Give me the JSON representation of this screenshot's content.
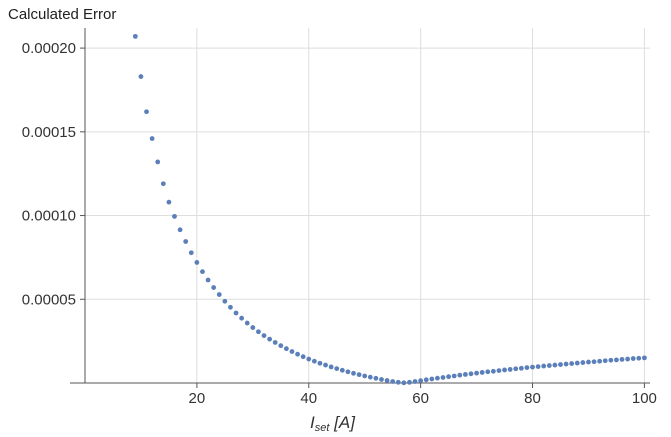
{
  "chart_data": {
    "type": "scatter",
    "title": "",
    "ylabel": "Calculated Error",
    "xlabel": {
      "symbol": "I",
      "subscript": "set",
      "unit": " [A]"
    },
    "xlim": [
      0,
      101
    ],
    "ylim": [
      0,
      0.000212
    ],
    "xticks": [
      20,
      40,
      60,
      80,
      100
    ],
    "xtick_labels": [
      "20",
      "40",
      "60",
      "80",
      "100"
    ],
    "yticks": [
      5e-05,
      0.0001,
      0.00015,
      0.0002
    ],
    "ytick_labels": [
      "0.00005",
      "0.00010",
      "0.00015",
      "0.00020"
    ],
    "grid": true,
    "marker_color": "#5b7fb9",
    "series": [
      {
        "x": [
          9,
          10,
          11,
          12,
          13,
          14,
          15,
          16,
          17,
          18,
          19,
          20,
          21,
          22,
          23,
          24,
          25,
          26,
          27,
          28,
          29,
          30,
          31,
          32,
          33,
          34,
          35,
          36,
          37,
          38,
          39,
          40,
          41,
          42,
          43,
          44,
          45,
          46,
          47,
          48,
          49,
          50,
          51,
          52,
          53,
          54,
          55,
          56,
          57,
          58,
          59,
          60,
          61,
          62,
          63,
          64,
          65,
          66,
          67,
          68,
          69,
          70,
          71,
          72,
          73,
          74,
          75,
          76,
          77,
          78,
          79,
          80,
          81,
          82,
          83,
          84,
          85,
          86,
          87,
          88,
          89,
          90,
          91,
          92,
          93,
          94,
          95,
          96,
          97,
          98,
          99,
          100
        ],
        "y": [
          0.000207,
          0.000183,
          0.000162,
          0.000146,
          0.000132,
          0.000119,
          0.000108,
          9.95e-05,
          9.15e-05,
          8.45e-05,
          7.78e-05,
          7.2e-05,
          6.65e-05,
          6.15e-05,
          5.7e-05,
          5.28e-05,
          4.88e-05,
          4.52e-05,
          4.18e-05,
          3.87e-05,
          3.58e-05,
          3.31e-05,
          3.06e-05,
          2.83e-05,
          2.62e-05,
          2.42e-05,
          2.23e-05,
          2.05e-05,
          1.88e-05,
          1.72e-05,
          1.57e-05,
          1.43e-05,
          1.3e-05,
          1.18e-05,
          1.07e-05,
          9.6e-06,
          8.6e-06,
          7.6e-06,
          6.7e-06,
          5.8e-06,
          5e-06,
          4.2e-06,
          3.5e-06,
          2.8e-06,
          2.1e-06,
          1.5e-06,
          9e-07,
          4e-07,
          1e-07,
          4e-07,
          9e-07,
          1.4e-06,
          1.9e-06,
          2.4e-06,
          2.9e-06,
          3.3e-06,
          3.8e-06,
          4.2e-06,
          4.7e-06,
          5.1e-06,
          5.5e-06,
          5.9e-06,
          6.3e-06,
          6.7e-06,
          7e-06,
          7.4e-06,
          7.8e-06,
          8.1e-06,
          8.5e-06,
          8.8e-06,
          9.2e-06,
          9.5e-06,
          9.8e-06,
          1.01e-05,
          1.04e-05,
          1.07e-05,
          1.1e-05,
          1.13e-05,
          1.16e-05,
          1.19e-05,
          1.22e-05,
          1.25e-05,
          1.27e-05,
          1.3e-05,
          1.33e-05,
          1.36e-05,
          1.38e-05,
          1.41e-05,
          1.43e-05,
          1.46e-05,
          1.48e-05,
          1.5e-05
        ]
      }
    ]
  }
}
